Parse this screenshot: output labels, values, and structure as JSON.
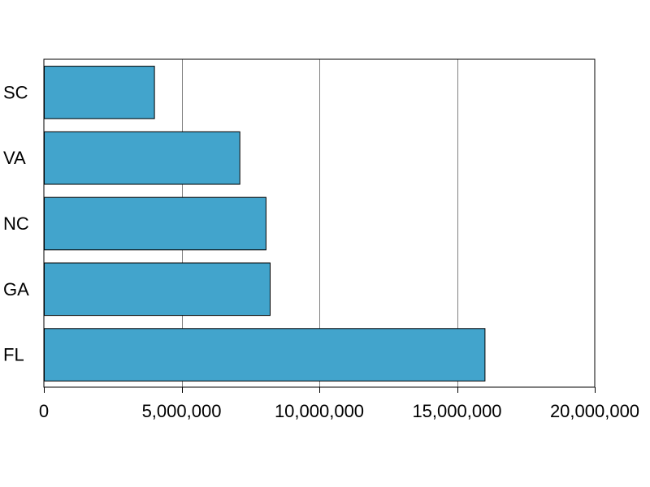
{
  "chart_data": {
    "type": "bar",
    "orientation": "horizontal",
    "categories": [
      "SC",
      "VA",
      "NC",
      "GA",
      "FL"
    ],
    "values": [
      4000000,
      7100000,
      8050000,
      8200000,
      16000000
    ],
    "xlim": [
      0,
      20000000
    ],
    "xticks": [
      0,
      5000000,
      10000000,
      15000000,
      20000000
    ],
    "xtick_labels": [
      "0",
      "5,000,000",
      "10,000,000",
      "15,000,000",
      "20,000,000"
    ],
    "title": "",
    "xlabel": "",
    "ylabel": "",
    "grid": "vertical",
    "legend": "none",
    "colors": {
      "bar_fill": "#42a4cc",
      "bar_stroke": "#000000",
      "grid": "#808080",
      "axis": "#000000",
      "background": "#ffffff"
    }
  }
}
